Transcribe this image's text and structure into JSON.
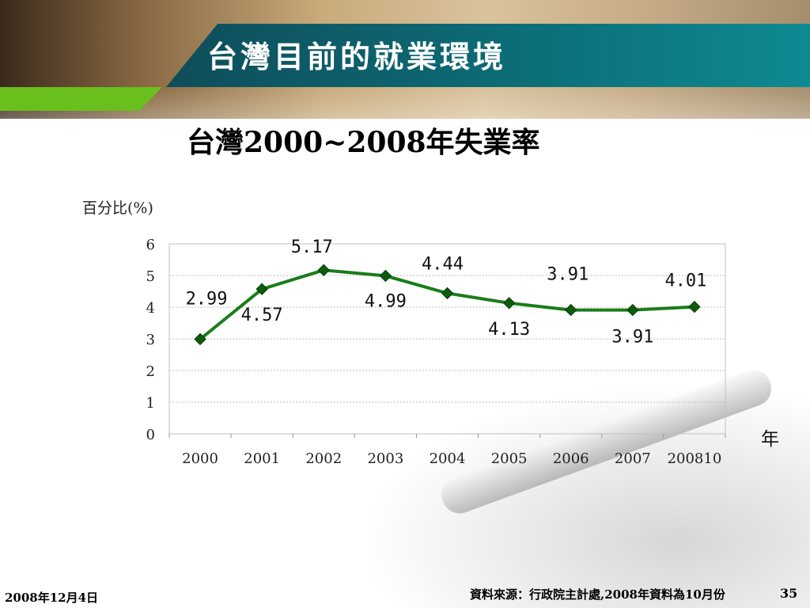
{
  "slide": {
    "title": "台灣目前的就業環境",
    "date": "2008年12月4日",
    "source": "資料來源：行政院主計處,2008年資料為10月份",
    "page_number": "35"
  },
  "chart_data": {
    "type": "line",
    "title": "台灣2000~2008年失業率",
    "ylabel": "百分比(%)",
    "xlabel": "年",
    "categories": [
      "2000",
      "2001",
      "2002",
      "2003",
      "2004",
      "2005",
      "2006",
      "2007",
      "200810"
    ],
    "series": [
      {
        "values": [
          2.99,
          4.57,
          5.17,
          4.99,
          4.44,
          4.13,
          3.91,
          3.91,
          4.01
        ]
      }
    ],
    "ylim": [
      0,
      6
    ],
    "yticks": [
      0,
      1,
      2,
      3,
      4,
      5,
      6
    ],
    "grid": true,
    "line_color": "#1a7d1a",
    "marker_color": "#0d5c0d"
  }
}
